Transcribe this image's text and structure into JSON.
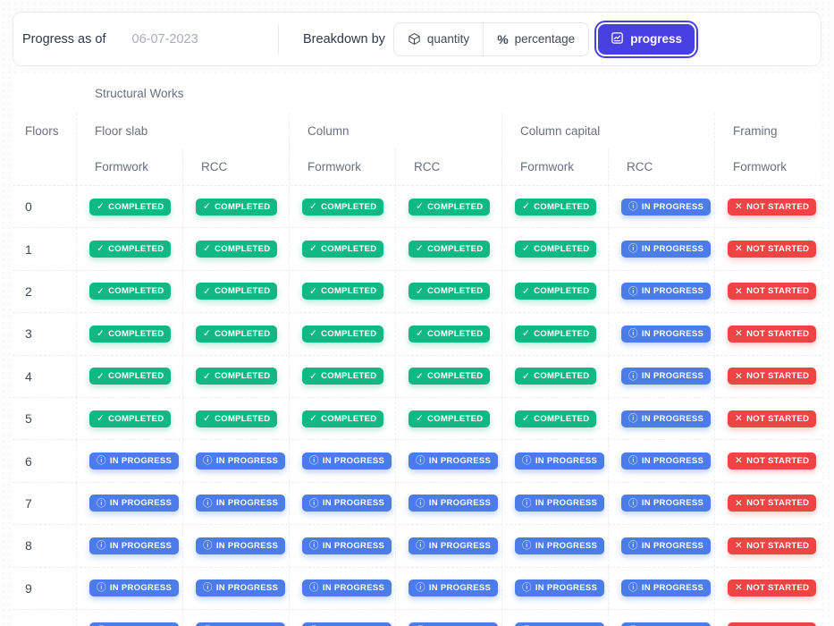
{
  "toolbar": {
    "progress_as_of_label": "Progress as of",
    "date_placeholder": "06-07-2023",
    "breakdown_by_label": "Breakdown by",
    "accent_color": "#4840e3",
    "buttons": [
      {
        "label": "quantity",
        "icon": "cube-icon",
        "selected": false
      },
      {
        "label": "percentage",
        "icon": "percent-icon",
        "selected": false
      },
      {
        "label": "progress",
        "icon": "line-chart-icon",
        "selected": true
      }
    ]
  },
  "table": {
    "group_header": "Structural Works",
    "floors_header": "Floors",
    "column_groups": [
      {
        "label": "Floor slab",
        "sub": [
          "Formwork",
          "RCC"
        ]
      },
      {
        "label": "Column",
        "sub": [
          "Formwork",
          "RCC"
        ]
      },
      {
        "label": "Column capital",
        "sub": [
          "Formwork",
          "RCC"
        ]
      },
      {
        "label": "Framing",
        "sub": [
          "Formwork"
        ]
      }
    ],
    "statuses": {
      "completed": {
        "label": "COMPLETED",
        "icon": "check-icon",
        "color": "#10b981"
      },
      "in_progress": {
        "label": "IN PROGRESS",
        "icon": "info-icon",
        "color": "#4b7ce9"
      },
      "not_started": {
        "label": "NOT STARTED",
        "icon": "x-icon",
        "color": "#ef4444"
      }
    },
    "rows": [
      {
        "floor": "0",
        "cells": [
          "completed",
          "completed",
          "completed",
          "completed",
          "completed",
          "in_progress",
          "not_started"
        ]
      },
      {
        "floor": "1",
        "cells": [
          "completed",
          "completed",
          "completed",
          "completed",
          "completed",
          "in_progress",
          "not_started"
        ]
      },
      {
        "floor": "2",
        "cells": [
          "completed",
          "completed",
          "completed",
          "completed",
          "completed",
          "in_progress",
          "not_started"
        ]
      },
      {
        "floor": "3",
        "cells": [
          "completed",
          "completed",
          "completed",
          "completed",
          "completed",
          "in_progress",
          "not_started"
        ]
      },
      {
        "floor": "4",
        "cells": [
          "completed",
          "completed",
          "completed",
          "completed",
          "completed",
          "in_progress",
          "not_started"
        ]
      },
      {
        "floor": "5",
        "cells": [
          "completed",
          "completed",
          "completed",
          "completed",
          "completed",
          "in_progress",
          "not_started"
        ]
      },
      {
        "floor": "6",
        "cells": [
          "in_progress",
          "in_progress",
          "in_progress",
          "in_progress",
          "in_progress",
          "in_progress",
          "not_started"
        ]
      },
      {
        "floor": "7",
        "cells": [
          "in_progress",
          "in_progress",
          "in_progress",
          "in_progress",
          "in_progress",
          "in_progress",
          "not_started"
        ]
      },
      {
        "floor": "8",
        "cells": [
          "in_progress",
          "in_progress",
          "in_progress",
          "in_progress",
          "in_progress",
          "in_progress",
          "not_started"
        ]
      },
      {
        "floor": "9",
        "cells": [
          "in_progress",
          "in_progress",
          "in_progress",
          "in_progress",
          "in_progress",
          "in_progress",
          "not_started"
        ]
      },
      {
        "floor": "",
        "cells": [
          "in_progress",
          "in_progress",
          "in_progress",
          "in_progress",
          "in_progress",
          "in_progress",
          "not_started"
        ]
      }
    ]
  }
}
